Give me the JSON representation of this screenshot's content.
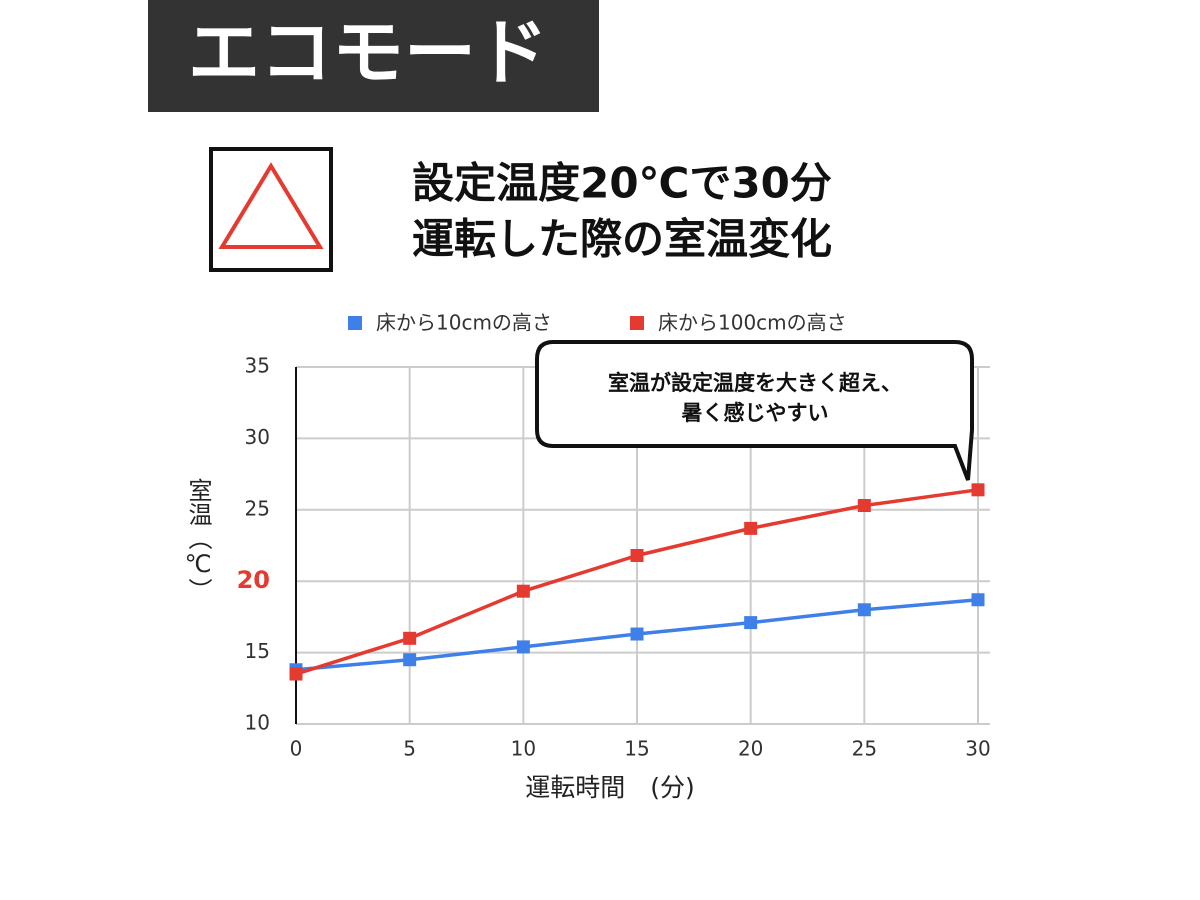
{
  "header": {
    "badge": "エコモード",
    "title_lines": [
      "設定温度20℃で30分",
      "運転した際の室温変化"
    ]
  },
  "chart_data": {
    "type": "line",
    "x": [
      0,
      5,
      10,
      15,
      20,
      25,
      30
    ],
    "series": [
      {
        "name": "床から10cmの高さ",
        "color": "#3f7fe8",
        "values": [
          13.8,
          14.5,
          15.4,
          16.3,
          17.1,
          18.0,
          18.7
        ]
      },
      {
        "name": "床から100cmの高さ",
        "color": "#e53a2f",
        "values": [
          13.5,
          16.0,
          19.3,
          21.8,
          23.7,
          25.3,
          26.4
        ]
      }
    ],
    "xlim": [
      0,
      30
    ],
    "xticks": [
      0,
      5,
      10,
      15,
      20,
      25,
      30
    ],
    "ylim": [
      10,
      35
    ],
    "yticks": [
      10,
      15,
      20,
      25,
      30,
      35
    ],
    "highlight_tick": {
      "value": 20,
      "color": "#e53a2f"
    },
    "xlabel": "運転時間　(分)",
    "ylabel": "室温（℃）",
    "grid": true,
    "legend": "top",
    "annotation": {
      "lines": [
        "室温が設定温度を大きく超え、",
        "暑く感じやすい"
      ]
    }
  }
}
